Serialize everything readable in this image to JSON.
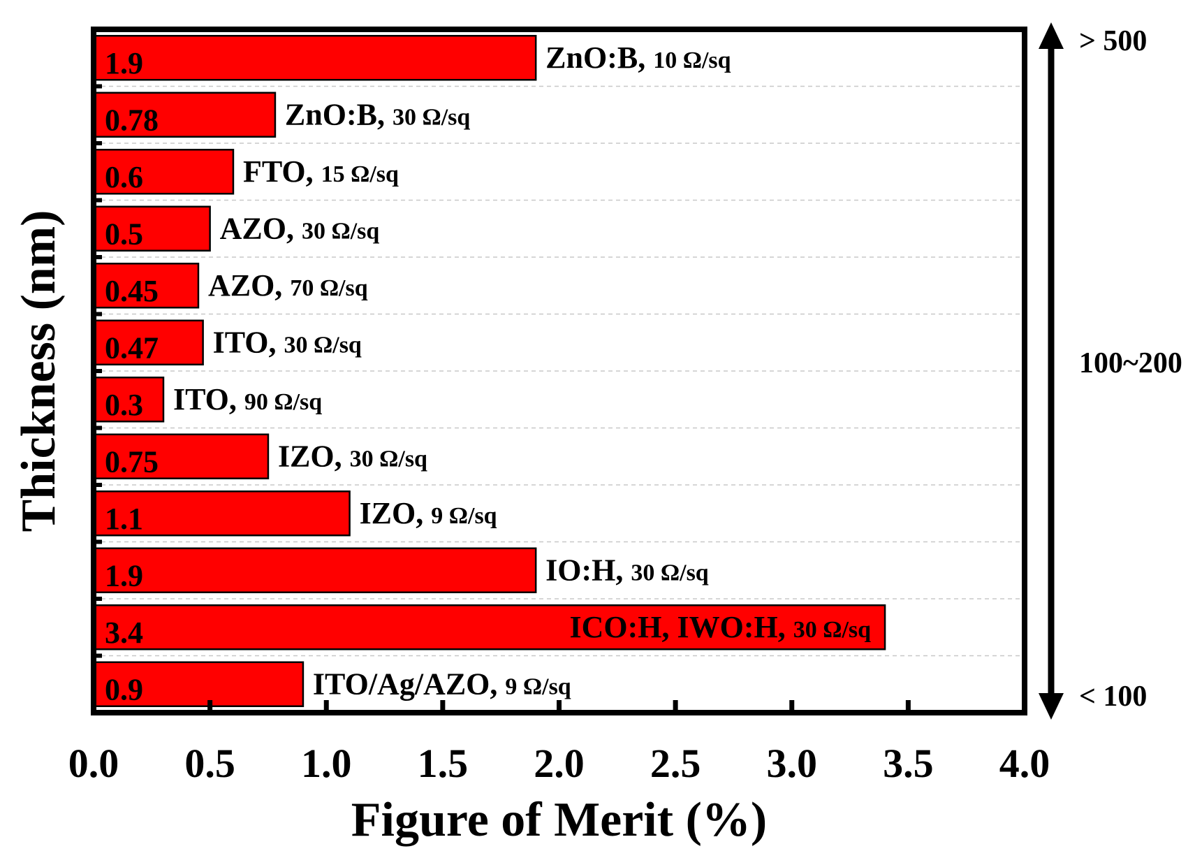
{
  "chart_data": {
    "type": "bar",
    "orientation": "horizontal",
    "xlabel": "Figure of Merit (%)",
    "ylabel": "Thickness (nm)",
    "xlim": [
      0.0,
      4.0
    ],
    "xticks": [
      "0.0",
      "0.5",
      "1.0",
      "1.5",
      "2.0",
      "2.5",
      "3.0",
      "3.5",
      "4.0"
    ],
    "grid": "horizontal dashed",
    "bar_color": "#ff0000",
    "bars": [
      {
        "value_label": "1.9",
        "value": 1.9,
        "material": "ZnO:B,",
        "sheet": "10 Ω/sq"
      },
      {
        "value_label": "0.78",
        "value": 0.78,
        "material": "ZnO:B,",
        "sheet": "30 Ω/sq"
      },
      {
        "value_label": "0.6",
        "value": 0.6,
        "material": "FTO,",
        "sheet": "15 Ω/sq"
      },
      {
        "value_label": "0.5",
        "value": 0.5,
        "material": "AZO,",
        "sheet": "30 Ω/sq"
      },
      {
        "value_label": "0.45",
        "value": 0.45,
        "material": "AZO,",
        "sheet": "70 Ω/sq"
      },
      {
        "value_label": "0.47",
        "value": 0.47,
        "material": "ITO,",
        "sheet": "30 Ω/sq"
      },
      {
        "value_label": "0.3",
        "value": 0.3,
        "material": "ITO,",
        "sheet": "90 Ω/sq"
      },
      {
        "value_label": "0.75",
        "value": 0.75,
        "material": "IZO,",
        "sheet": "30 Ω/sq"
      },
      {
        "value_label": "1.1",
        "value": 1.1,
        "material": "IZO,",
        "sheet": "9 Ω/sq"
      },
      {
        "value_label": "1.9",
        "value": 1.9,
        "material": "IO:H,",
        "sheet": "30 Ω/sq"
      },
      {
        "value_label": "3.4",
        "value": 3.4,
        "material": "ICO:H, IWO:H,",
        "sheet": "30 Ω/sq",
        "label_inside": true
      },
      {
        "value_label": "0.9",
        "value": 0.9,
        "material": "ITO/Ag/AZO,",
        "sheet": "9 Ω/sq"
      }
    ],
    "thickness_scale": {
      "top": "> 500",
      "middle": "100~200",
      "bottom": "< 100"
    }
  }
}
